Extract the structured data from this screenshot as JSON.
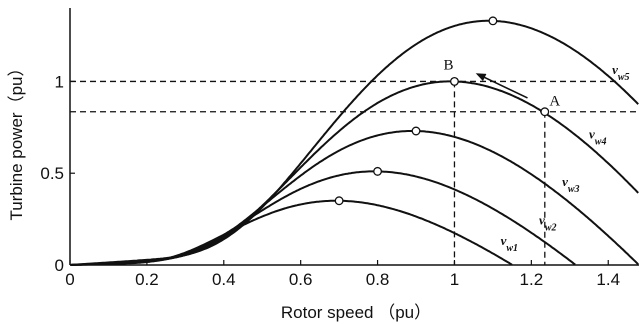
{
  "chart_data": {
    "type": "line",
    "title": "",
    "xlabel": "Rotor speed （pu）",
    "ylabel": "Turbine power（pu）",
    "xlim": [
      0,
      1.48
    ],
    "ylim": [
      0,
      1.4
    ],
    "xticks": [
      "0",
      "0.2",
      "0.4",
      "0.6",
      "0.8",
      "1",
      "1.2",
      "1.4"
    ],
    "xtick_values": [
      0,
      0.2,
      0.4,
      0.6,
      0.8,
      1.0,
      1.2,
      1.4
    ],
    "yticks": [
      "0",
      "0.5",
      "1"
    ],
    "ytick_values": [
      0,
      0.5,
      1.0
    ],
    "grid": false,
    "legend": "none",
    "series": [
      {
        "name": "v",
        "sub": "w1",
        "peak": {
          "x": 0.7,
          "y": 0.35
        }
      },
      {
        "name": "v",
        "sub": "w2",
        "peak": {
          "x": 0.8,
          "y": 0.51
        }
      },
      {
        "name": "v",
        "sub": "w3",
        "peak": {
          "x": 0.9,
          "y": 0.73
        }
      },
      {
        "name": "v",
        "sub": "w4",
        "peak": {
          "x": 1.0,
          "y": 1.0
        }
      },
      {
        "name": "v",
        "sub": "w5",
        "peak": {
          "x": 1.1,
          "y": 1.33
        }
      }
    ],
    "points": [
      {
        "label": "B",
        "x": 1.0,
        "y": 1.0
      },
      {
        "label": "A",
        "x": 1.235,
        "y": 0.835
      }
    ],
    "reference_lines": {
      "horizontal": [
        1.0,
        0.835
      ],
      "vertical": [
        1.0,
        1.235
      ]
    },
    "arrow": {
      "from": {
        "x": 1.19,
        "y": 0.91
      },
      "to": {
        "x": 1.06,
        "y": 1.04
      }
    }
  }
}
